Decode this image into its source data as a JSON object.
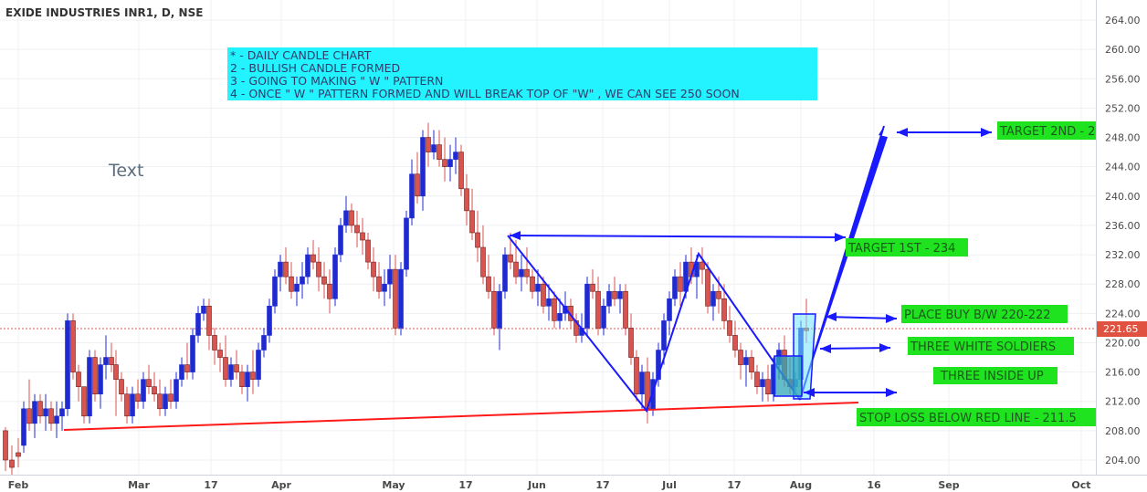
{
  "chart_data": {
    "type": "candlestick",
    "title": "EXIDE INDUSTRIES INR1, D, NSE",
    "yticks": [
      "204.00",
      "208.00",
      "212.00",
      "216.00",
      "220.00",
      "224.00",
      "228.00",
      "232.00",
      "236.00",
      "240.00",
      "244.00",
      "248.00",
      "252.00",
      "256.00",
      "260.00",
      "264.00"
    ],
    "ylim": [
      203,
      268
    ],
    "xticks": [
      {
        "label": "Feb",
        "x": 20
      },
      {
        "label": "Mar",
        "x": 152
      },
      {
        "label": "17",
        "x": 231
      },
      {
        "label": "Apr",
        "x": 308
      },
      {
        "label": "May",
        "x": 431
      },
      {
        "label": "17",
        "x": 510
      },
      {
        "label": "Jun",
        "x": 588
      },
      {
        "label": "17",
        "x": 660
      },
      {
        "label": "Jul",
        "x": 733
      },
      {
        "label": "17",
        "x": 804
      },
      {
        "label": "Aug",
        "x": 877
      },
      {
        "label": "16",
        "x": 957
      },
      {
        "label": "Sep",
        "x": 1039
      },
      {
        "label": "Oct",
        "x": 1184
      }
    ],
    "last_price": 221.65,
    "candles": [
      [
        6,
        208,
        208.5,
        202.5,
        204
      ],
      [
        13,
        204,
        206,
        202,
        203
      ],
      [
        20,
        205,
        207,
        203,
        204.5
      ],
      [
        26,
        206,
        212,
        205,
        211
      ],
      [
        32,
        211,
        215,
        208,
        209
      ],
      [
        38,
        209,
        213,
        207,
        212
      ],
      [
        44,
        212,
        213,
        209,
        210
      ],
      [
        50,
        210,
        213,
        208,
        211
      ],
      [
        56,
        211,
        212,
        208,
        209
      ],
      [
        62,
        209,
        212,
        207,
        210
      ],
      [
        68,
        210,
        212,
        208,
        211
      ],
      [
        74,
        211,
        224,
        210,
        223
      ],
      [
        80,
        223,
        224,
        215,
        216
      ],
      [
        86,
        216,
        217,
        212,
        214
      ],
      [
        92,
        214,
        214,
        209,
        210
      ],
      [
        98,
        210,
        219,
        209,
        218
      ],
      [
        104,
        218,
        219,
        212,
        213
      ],
      [
        110,
        213,
        218,
        211,
        217
      ],
      [
        116,
        217,
        221,
        215,
        218
      ],
      [
        122,
        218,
        220,
        216,
        217
      ],
      [
        127,
        217,
        219,
        210,
        215
      ],
      [
        133,
        215,
        216,
        212,
        213
      ],
      [
        139,
        213,
        214,
        209,
        210
      ],
      [
        145,
        210,
        214,
        209,
        213
      ],
      [
        151,
        213,
        215,
        211,
        212
      ],
      [
        157,
        212,
        216,
        211,
        215
      ],
      [
        163,
        215,
        217,
        213,
        214
      ],
      [
        169,
        214,
        216,
        212,
        213
      ],
      [
        175,
        213,
        215,
        210,
        211
      ],
      [
        181,
        211,
        214,
        210,
        213
      ],
      [
        187,
        213,
        215,
        211,
        212
      ],
      [
        193,
        212,
        216,
        211,
        215
      ],
      [
        199,
        215,
        218,
        214,
        217
      ],
      [
        205,
        217,
        220,
        215,
        216
      ],
      [
        211,
        216,
        222,
        215,
        221
      ],
      [
        217,
        221,
        225,
        220,
        224
      ],
      [
        223,
        224,
        226,
        223,
        225
      ],
      [
        229,
        225,
        226,
        219,
        221
      ],
      [
        235,
        221,
        222,
        217,
        219
      ],
      [
        241,
        219,
        220,
        216,
        218
      ],
      [
        247,
        218,
        221,
        214,
        215
      ],
      [
        253,
        215,
        218,
        214,
        217
      ],
      [
        259,
        217,
        219,
        215,
        216
      ],
      [
        265,
        216,
        217,
        213,
        214
      ],
      [
        271,
        214,
        217,
        212,
        216
      ],
      [
        277,
        216,
        219,
        213,
        215
      ],
      [
        283,
        215,
        220,
        214,
        219
      ],
      [
        289,
        219,
        222,
        218,
        221
      ],
      [
        295,
        221,
        226,
        220,
        225
      ],
      [
        301,
        225,
        230,
        224,
        229
      ],
      [
        307,
        229,
        232,
        227,
        231
      ],
      [
        313,
        231,
        233,
        228,
        229
      ],
      [
        319,
        229,
        231,
        226,
        227
      ],
      [
        325,
        227,
        229,
        225,
        228
      ],
      [
        331,
        228,
        231,
        226,
        229
      ],
      [
        337,
        229,
        233,
        228,
        232
      ],
      [
        343,
        232,
        234,
        230,
        231
      ],
      [
        349,
        231,
        233,
        227,
        229
      ],
      [
        355,
        229,
        231,
        226,
        228
      ],
      [
        361,
        228,
        230,
        224,
        226
      ],
      [
        367,
        226,
        233,
        225,
        232
      ],
      [
        373,
        232,
        237,
        231,
        236
      ],
      [
        379,
        236,
        240,
        235,
        238
      ],
      [
        385,
        238,
        239,
        235,
        236
      ],
      [
        391,
        236,
        238,
        233,
        235
      ],
      [
        397,
        235,
        237,
        232,
        234
      ],
      [
        403,
        234,
        235,
        230,
        231
      ],
      [
        409,
        231,
        233,
        227,
        229
      ],
      [
        415,
        229,
        231,
        226,
        227
      ],
      [
        421,
        227,
        230,
        225,
        228
      ],
      [
        427,
        228,
        232,
        226,
        230
      ],
      [
        433,
        230,
        232,
        221,
        222
      ],
      [
        439,
        222,
        231,
        221,
        230
      ],
      [
        445,
        230,
        238,
        229,
        237
      ],
      [
        451,
        237,
        245,
        236,
        243
      ],
      [
        457,
        243,
        246,
        239,
        240
      ],
      [
        463,
        240,
        249,
        238,
        248
      ],
      [
        469,
        248,
        250,
        244,
        246
      ],
      [
        475,
        246,
        249,
        245,
        247
      ],
      [
        481,
        247,
        249,
        244,
        245
      ],
      [
        487,
        245,
        248,
        242,
        244
      ],
      [
        493,
        244,
        247,
        242,
        245
      ],
      [
        499,
        245,
        248,
        243,
        246
      ],
      [
        505,
        246,
        247,
        240,
        241
      ],
      [
        511,
        241,
        243,
        236,
        238
      ],
      [
        517,
        238,
        241,
        234,
        235
      ],
      [
        523,
        235,
        238,
        231,
        233
      ],
      [
        529,
        233,
        236,
        228,
        229
      ],
      [
        535,
        229,
        232,
        226,
        227
      ],
      [
        541,
        227,
        229,
        221,
        222
      ],
      [
        547,
        222,
        228,
        219,
        227
      ],
      [
        553,
        227,
        233,
        226,
        232
      ],
      [
        559,
        232,
        235,
        230,
        231
      ],
      [
        565,
        231,
        234,
        228,
        229
      ],
      [
        571,
        229,
        232,
        227,
        230
      ],
      [
        577,
        230,
        233,
        228,
        229
      ],
      [
        583,
        229,
        230,
        226,
        227
      ],
      [
        589,
        227,
        230,
        225,
        228
      ],
      [
        595,
        228,
        229,
        224,
        225
      ],
      [
        601,
        225,
        228,
        223,
        226
      ],
      [
        607,
        226,
        227,
        222,
        223
      ],
      [
        613,
        223,
        226,
        222,
        224
      ],
      [
        619,
        224,
        227,
        223,
        225
      ],
      [
        625,
        225,
        226,
        222,
        223
      ],
      [
        631,
        223,
        224,
        220,
        221
      ],
      [
        637,
        221,
        224,
        220,
        222
      ],
      [
        643,
        222,
        229,
        221,
        228
      ],
      [
        649,
        228,
        230,
        226,
        227
      ],
      [
        655,
        227,
        229,
        221,
        222
      ],
      [
        661,
        222,
        226,
        221,
        225
      ],
      [
        667,
        225,
        228,
        224,
        227
      ],
      [
        673,
        227,
        229,
        225,
        226
      ],
      [
        679,
        226,
        228,
        224,
        227
      ],
      [
        685,
        227,
        228,
        221,
        222
      ],
      [
        691,
        222,
        224,
        217,
        218
      ],
      [
        697,
        218,
        219,
        212,
        213
      ],
      [
        703,
        213,
        217,
        211,
        216
      ],
      [
        709,
        216,
        218,
        209,
        211
      ],
      [
        715,
        211,
        216,
        210,
        215
      ],
      [
        721,
        215,
        220,
        214,
        219
      ],
      [
        727,
        219,
        224,
        217,
        223
      ],
      [
        733,
        223,
        227,
        221,
        226
      ],
      [
        739,
        226,
        230,
        225,
        229
      ],
      [
        745,
        229,
        231,
        225,
        227
      ],
      [
        751,
        227,
        232,
        226,
        231
      ],
      [
        757,
        231,
        233,
        228,
        229
      ],
      [
        763,
        229,
        232,
        226,
        231
      ],
      [
        769,
        231,
        233,
        228,
        230
      ],
      [
        775,
        230,
        231,
        224,
        225
      ],
      [
        781,
        225,
        228,
        223,
        227
      ],
      [
        787,
        227,
        229,
        224,
        226
      ],
      [
        793,
        226,
        228,
        222,
        223
      ],
      [
        799,
        223,
        225,
        220,
        221
      ],
      [
        805,
        221,
        223,
        218,
        219
      ],
      [
        811,
        219,
        220,
        215,
        217
      ],
      [
        817,
        217,
        219,
        214,
        218
      ],
      [
        823,
        218,
        219,
        215,
        216
      ],
      [
        829,
        216,
        217,
        213,
        214
      ],
      [
        835,
        214,
        216,
        212,
        215
      ],
      [
        841,
        215,
        217,
        212,
        213
      ],
      [
        847,
        213,
        218,
        212,
        217
      ],
      [
        853,
        217,
        220,
        215,
        219
      ],
      [
        859,
        219,
        221,
        214,
        215
      ],
      [
        865,
        215,
        218,
        213,
        214
      ],
      [
        871,
        214,
        216,
        213,
        215
      ],
      [
        877,
        215,
        223,
        214,
        222
      ],
      [
        883,
        222,
        226,
        220,
        221.65
      ]
    ]
  },
  "notes": {
    "line1": "* - DAILY CANDLE CHART",
    "line2": "2 - BULLISH CANDLE FORMED",
    "line3": "3 - GOING TO MAKING \" W \" PATTERN",
    "line4": "4 - ONCE \" W \" PATTERN FORMED AND WILL BREAK TOP OF \"W\" , WE CAN SEE 250 SOON"
  },
  "labels": {
    "target2": "TARGET 2ND - 2",
    "target1": "TARGET 1ST - 234",
    "buy": "PLACE BUY B/W 220-222",
    "soldiers": "THREE WHITE SOLDIERS",
    "inside": "THREE INSIDE UP",
    "stoploss": "STOP LOSS BELOW RED LINE  - 211.5",
    "plain_text": "Text",
    "price_tag": "221.65"
  },
  "colors": {
    "up": "#1f2bd1",
    "down": "#d9534f",
    "draw": "#1a1aff",
    "support": "#ff1a1a",
    "note_bg": "#22f3ff",
    "label_bg": "#1fe31f",
    "price_tag": "#e0523f"
  }
}
